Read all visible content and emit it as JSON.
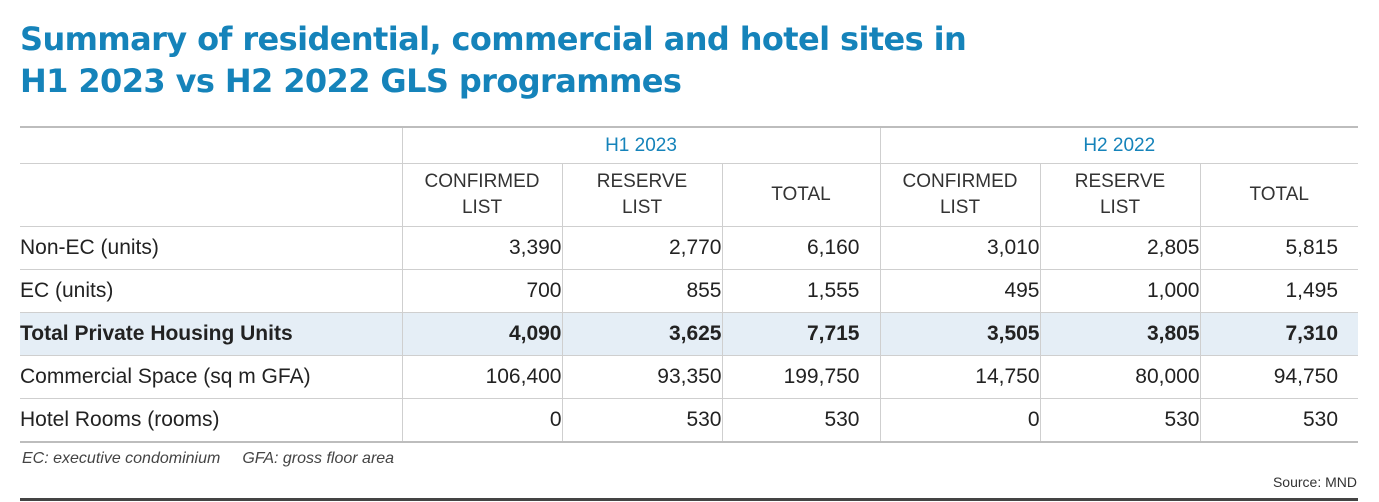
{
  "title": {
    "line1": "Summary of residential, commercial and hotel sites in",
    "line2": "H1 2023 vs H2 2022 GLS programmes"
  },
  "table": {
    "groups": [
      "H1 2023",
      "H2 2022"
    ],
    "columns": [
      {
        "line1": "CONFIRMED",
        "line2": "LIST"
      },
      {
        "line1": "RESERVE",
        "line2": "LIST"
      },
      {
        "line1": "TOTAL",
        "line2": ""
      },
      {
        "line1": "CONFIRMED",
        "line2": "LIST"
      },
      {
        "line1": "RESERVE",
        "line2": "LIST"
      },
      {
        "line1": "TOTAL",
        "line2": ""
      }
    ],
    "rows": [
      {
        "label": "Non-EC (units)",
        "values": [
          "3,390",
          "2,770",
          "6,160",
          "3,010",
          "2,805",
          "5,815"
        ],
        "highlight": false
      },
      {
        "label": "EC (units)",
        "values": [
          "700",
          "855",
          "1,555",
          "495",
          "1,000",
          "1,495"
        ],
        "highlight": false
      },
      {
        "label": "Total Private Housing Units",
        "values": [
          "4,090",
          "3,625",
          "7,715",
          "3,505",
          "3,805",
          "7,310"
        ],
        "highlight": true
      },
      {
        "label": "Commercial Space (sq m GFA)",
        "values": [
          "106,400",
          "93,350",
          "199,750",
          "14,750",
          "80,000",
          "94,750"
        ],
        "highlight": false
      },
      {
        "label": "Hotel Rooms (rooms)",
        "values": [
          "0",
          "530",
          "530",
          "0",
          "530",
          "530"
        ],
        "highlight": false
      }
    ]
  },
  "footnotes": {
    "ec": "EC: executive condominium",
    "gfa": "GFA: gross floor area"
  },
  "source": "Source: MND",
  "colors": {
    "title": "#1583ba",
    "group_header": "#1583ba",
    "highlight_row": "#e5eef6"
  }
}
